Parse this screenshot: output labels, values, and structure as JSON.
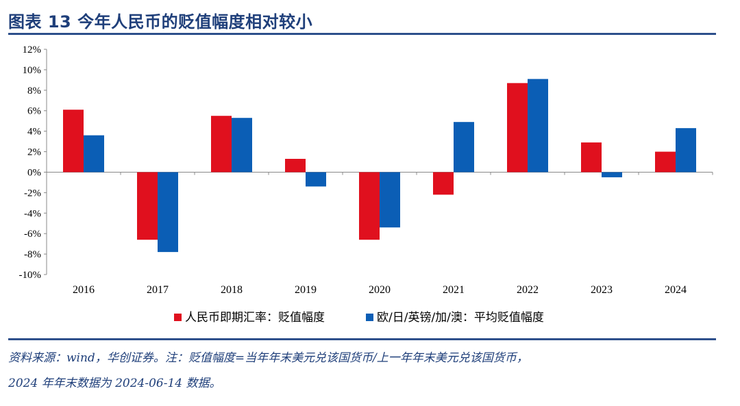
{
  "figure": {
    "title": "图表 13   今年人民币的贬值幅度相对较小"
  },
  "chart_data": {
    "type": "bar",
    "title": "",
    "xlabel": "",
    "ylabel": "",
    "categories": [
      "2016",
      "2017",
      "2018",
      "2019",
      "2020",
      "2021",
      "2022",
      "2023",
      "2024"
    ],
    "series": [
      {
        "name": "人民币即期汇率：贬值幅度",
        "color": "#e0101e",
        "values": [
          6.1,
          -6.6,
          5.5,
          1.3,
          -6.6,
          -2.2,
          8.7,
          2.9,
          2.0
        ]
      },
      {
        "name": "欧/日/英镑/加/澳：平均贬值幅度",
        "color": "#0b5eb5",
        "values": [
          3.6,
          -7.8,
          5.3,
          -1.4,
          -5.4,
          4.9,
          9.1,
          -0.5,
          4.3
        ]
      }
    ],
    "ylim": [
      -10,
      12
    ],
    "yticks": [
      "12%",
      "10%",
      "8%",
      "6%",
      "4%",
      "2%",
      "0%",
      "-2%",
      "-4%",
      "-6%",
      "-8%",
      "-10%"
    ],
    "ytick_values": [
      12,
      10,
      8,
      6,
      4,
      2,
      0,
      -2,
      -4,
      -6,
      -8,
      -10
    ],
    "grid": false,
    "legend_position": "bottom-center"
  },
  "notes": {
    "line1": "资料来源：wind，华创证券。注：贬值幅度=当年年末美元兑该国货币/上一年年末美元兑该国货币，",
    "line2": "2024 年年末数据为 2024-06-14 数据。"
  }
}
